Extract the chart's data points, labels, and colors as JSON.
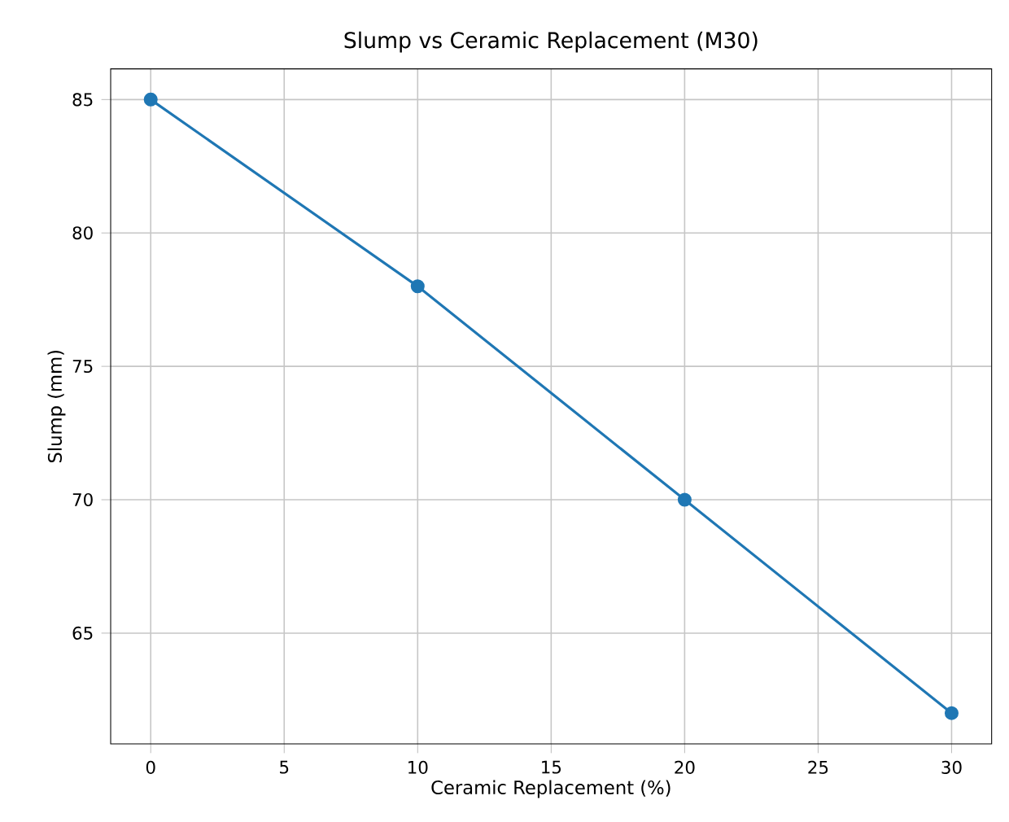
{
  "chart_data": {
    "type": "line",
    "title": "Slump vs Ceramic Replacement (M30)",
    "xlabel": "Ceramic Replacement (%)",
    "ylabel": "Slump (mm)",
    "x": [
      0,
      10,
      20,
      30
    ],
    "series": [
      {
        "color": "#1f77b4",
        "values": [
          85,
          78,
          70,
          62
        ]
      }
    ],
    "xlim": [
      -1.5,
      31.5
    ],
    "ylim": [
      60.85,
      86.15
    ],
    "xticks": [
      0,
      5,
      10,
      15,
      20,
      25,
      30
    ],
    "yticks": [
      65,
      70,
      75,
      80,
      85
    ],
    "grid": true,
    "marker": "circle",
    "line_style": "solid"
  }
}
